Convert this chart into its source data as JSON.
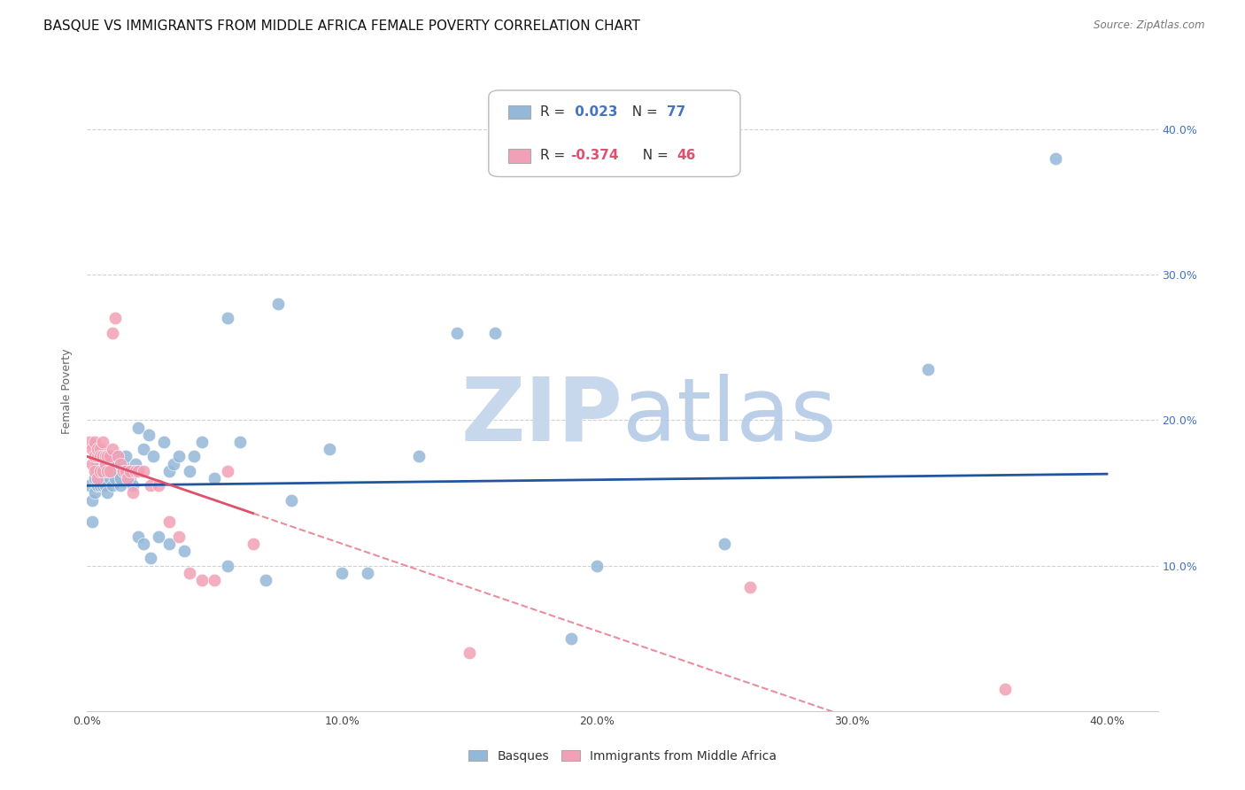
{
  "title": "BASQUE VS IMMIGRANTS FROM MIDDLE AFRICA FEMALE POVERTY CORRELATION CHART",
  "source": "Source: ZipAtlas.com",
  "ylabel": "Female Poverty",
  "xlim": [
    0.0,
    0.42
  ],
  "ylim": [
    0.0,
    0.44
  ],
  "basque_color": "#94b8d8",
  "immigrant_color": "#f2a0b5",
  "trendline_basque_color": "#2255a0",
  "trendline_immigrant_color": "#e0506a",
  "watermark_zip_color": "#c8d8ec",
  "watermark_atlas_color": "#b0c8e4",
  "background_color": "#ffffff",
  "grid_color": "#cccccc",
  "title_fontsize": 11,
  "axis_label_fontsize": 9,
  "tick_fontsize": 9,
  "legend_fontsize": 10,
  "basque_x": [
    0.001,
    0.002,
    0.002,
    0.003,
    0.003,
    0.003,
    0.004,
    0.004,
    0.004,
    0.004,
    0.005,
    0.005,
    0.005,
    0.005,
    0.005,
    0.006,
    0.006,
    0.006,
    0.006,
    0.007,
    0.007,
    0.007,
    0.007,
    0.008,
    0.008,
    0.008,
    0.009,
    0.009,
    0.01,
    0.01,
    0.011,
    0.011,
    0.012,
    0.012,
    0.013,
    0.013,
    0.014,
    0.015,
    0.016,
    0.017,
    0.018,
    0.019,
    0.02,
    0.022,
    0.024,
    0.026,
    0.03,
    0.032,
    0.034,
    0.036,
    0.04,
    0.042,
    0.045,
    0.05,
    0.055,
    0.06,
    0.07,
    0.08,
    0.095,
    0.11,
    0.13,
    0.16,
    0.2,
    0.25,
    0.02,
    0.022,
    0.025,
    0.028,
    0.032,
    0.038,
    0.055,
    0.075,
    0.1,
    0.145,
    0.19,
    0.33,
    0.38
  ],
  "basque_y": [
    0.155,
    0.13,
    0.145,
    0.175,
    0.16,
    0.15,
    0.165,
    0.17,
    0.155,
    0.16,
    0.175,
    0.165,
    0.155,
    0.16,
    0.17,
    0.165,
    0.175,
    0.16,
    0.155,
    0.17,
    0.165,
    0.16,
    0.155,
    0.175,
    0.165,
    0.15,
    0.17,
    0.16,
    0.165,
    0.155,
    0.17,
    0.16,
    0.175,
    0.165,
    0.155,
    0.16,
    0.17,
    0.175,
    0.165,
    0.16,
    0.155,
    0.17,
    0.195,
    0.18,
    0.19,
    0.175,
    0.185,
    0.165,
    0.17,
    0.175,
    0.165,
    0.175,
    0.185,
    0.16,
    0.1,
    0.185,
    0.09,
    0.145,
    0.18,
    0.095,
    0.175,
    0.26,
    0.1,
    0.115,
    0.12,
    0.115,
    0.105,
    0.12,
    0.115,
    0.11,
    0.27,
    0.28,
    0.095,
    0.26,
    0.05,
    0.235,
    0.38
  ],
  "immigrant_x": [
    0.001,
    0.002,
    0.002,
    0.003,
    0.003,
    0.003,
    0.004,
    0.004,
    0.004,
    0.005,
    0.005,
    0.005,
    0.006,
    0.006,
    0.006,
    0.007,
    0.007,
    0.008,
    0.008,
    0.009,
    0.009,
    0.01,
    0.01,
    0.011,
    0.012,
    0.013,
    0.014,
    0.015,
    0.016,
    0.017,
    0.018,
    0.019,
    0.02,
    0.022,
    0.025,
    0.028,
    0.032,
    0.036,
    0.04,
    0.045,
    0.05,
    0.055,
    0.065,
    0.15,
    0.26,
    0.36
  ],
  "immigrant_y": [
    0.185,
    0.17,
    0.18,
    0.175,
    0.185,
    0.165,
    0.175,
    0.18,
    0.16,
    0.18,
    0.175,
    0.165,
    0.175,
    0.165,
    0.185,
    0.17,
    0.175,
    0.165,
    0.175,
    0.165,
    0.175,
    0.18,
    0.26,
    0.27,
    0.175,
    0.17,
    0.165,
    0.165,
    0.16,
    0.165,
    0.15,
    0.165,
    0.165,
    0.165,
    0.155,
    0.155,
    0.13,
    0.12,
    0.095,
    0.09,
    0.09,
    0.165,
    0.115,
    0.04,
    0.085,
    0.015
  ]
}
